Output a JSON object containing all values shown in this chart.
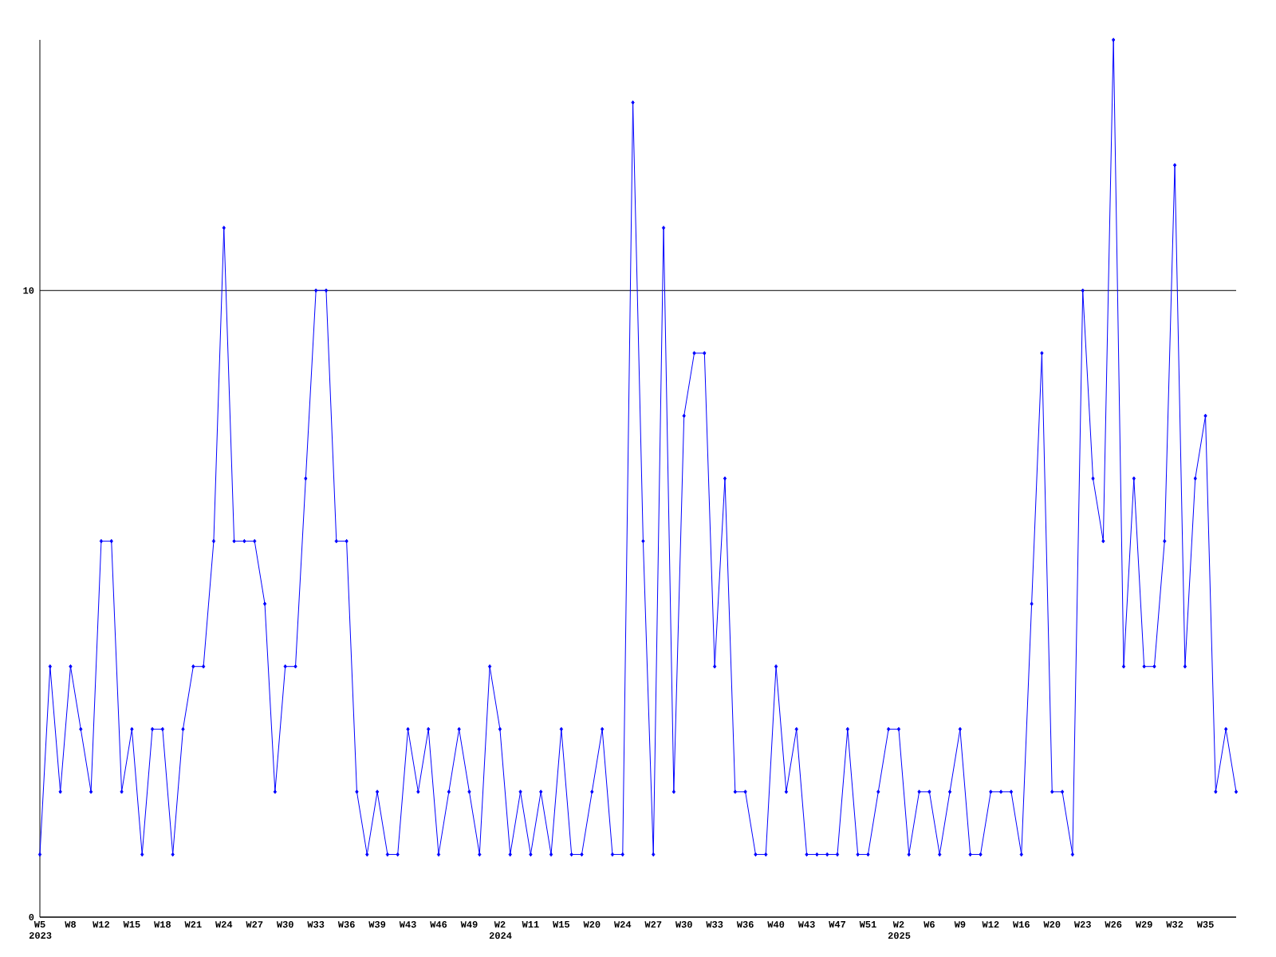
{
  "chart_data": {
    "type": "line",
    "categories": [
      "W5 2023",
      null,
      null,
      "W8",
      null,
      null,
      "W12",
      null,
      null,
      "W15",
      null,
      null,
      "W18",
      null,
      null,
      "W21",
      null,
      null,
      "W24",
      null,
      null,
      "W27",
      null,
      null,
      "W30",
      null,
      null,
      "W33",
      null,
      null,
      "W36",
      null,
      null,
      "W39",
      null,
      null,
      "W43",
      null,
      null,
      "W46",
      null,
      null,
      "W49",
      null,
      null,
      "W2 2024",
      null,
      null,
      "W11",
      null,
      null,
      "W15",
      null,
      null,
      "W20",
      null,
      null,
      "W24",
      null,
      null,
      "W27",
      null,
      null,
      "W30",
      null,
      null,
      "W33",
      null,
      null,
      "W36",
      null,
      null,
      "W40",
      null,
      null,
      "W43",
      null,
      null,
      "W47",
      null,
      null,
      "W51",
      null,
      null,
      "W2 2025",
      null,
      null,
      "W6",
      null,
      null,
      "W9",
      null,
      null,
      "W12",
      null,
      null,
      "W16",
      null,
      null,
      "W20",
      null,
      null,
      "W23",
      null,
      null,
      "W26",
      null,
      null,
      "W29",
      null,
      null,
      "W32",
      null,
      null,
      "W35",
      null,
      null,
      null
    ],
    "values": [
      1,
      4,
      2,
      4,
      3,
      2,
      6,
      6,
      2,
      3,
      1,
      3,
      3,
      1,
      3,
      4,
      4,
      6,
      11,
      6,
      6,
      6,
      5,
      2,
      4,
      4,
      7,
      10,
      10,
      6,
      6,
      2,
      1,
      2,
      1,
      1,
      3,
      2,
      3,
      1,
      2,
      3,
      2,
      1,
      4,
      3,
      1,
      2,
      1,
      2,
      1,
      3,
      1,
      1,
      2,
      3,
      1,
      1,
      13,
      6,
      1,
      11,
      2,
      8,
      9,
      9,
      4,
      7,
      2,
      2,
      1,
      1,
      4,
      2,
      3,
      1,
      1,
      1,
      1,
      3,
      1,
      1,
      2,
      3,
      3,
      1,
      2,
      2,
      1,
      2,
      3,
      1,
      1,
      2,
      2,
      2,
      1,
      5,
      9,
      2,
      2,
      1,
      10,
      7,
      6,
      14,
      4,
      7,
      4,
      4,
      6,
      12,
      4,
      7,
      8,
      2,
      3,
      2
    ],
    "color": "#0000ff",
    "marker": "diamond",
    "grid": "y",
    "ylim": [
      0,
      14
    ],
    "yticks": [
      0,
      10
    ]
  }
}
